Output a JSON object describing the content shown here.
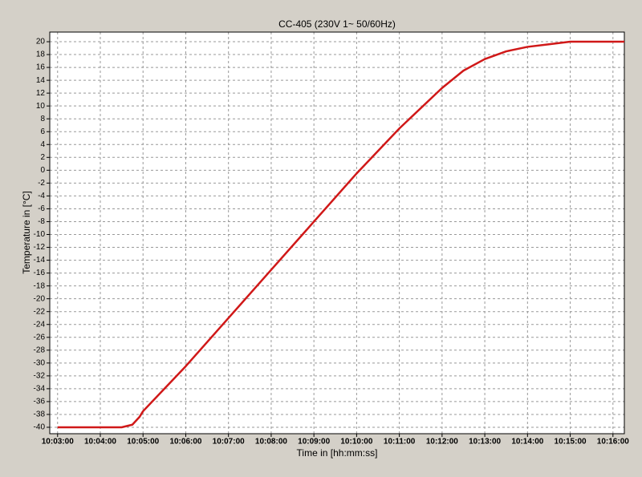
{
  "chart_data": {
    "type": "line",
    "title": "CC-405 (230V 1~ 50/60Hz)",
    "x_label": "Time in [hh:mm:ss]",
    "y_label": "Temperature in [°C]",
    "x": [
      "10:03:00",
      "10:04:00",
      "10:04:30",
      "10:04:45",
      "10:04:55",
      "10:05:00",
      "10:06:00",
      "10:07:00",
      "10:08:00",
      "10:09:00",
      "10:10:00",
      "10:11:00",
      "10:12:00",
      "10:12:30",
      "10:13:00",
      "10:13:30",
      "10:14:00",
      "10:14:30",
      "10:15:00",
      "10:16:00",
      "10:16:16"
    ],
    "series": [
      {
        "name": "Temperature",
        "color": "#d01818",
        "values": [
          -40,
          -40,
          -40,
          -39.6,
          -38.4,
          -37.5,
          -30.5,
          -23,
          -15.5,
          -8,
          -0.5,
          6.5,
          12.8,
          15.5,
          17.3,
          18.5,
          19.2,
          19.6,
          20,
          20,
          20
        ]
      }
    ],
    "xlim": [
      "10:02:49",
      "10:16:16"
    ],
    "xticks": [
      "10:03:00",
      "10:04:00",
      "10:05:00",
      "10:06:00",
      "10:07:00",
      "10:08:00",
      "10:09:00",
      "10:10:00",
      "10:11:00",
      "10:12:00",
      "10:13:00",
      "10:14:00",
      "10:15:00",
      "10:16:00"
    ],
    "ylim": [
      -41,
      21.5
    ],
    "yticks": [
      -40,
      -38,
      -36,
      -34,
      -32,
      -30,
      -28,
      -26,
      -24,
      -22,
      -20,
      -18,
      -16,
      -14,
      -12,
      -10,
      -8,
      -6,
      -4,
      -2,
      0,
      2,
      4,
      6,
      8,
      10,
      12,
      14,
      16,
      18,
      20
    ],
    "grid": true
  }
}
